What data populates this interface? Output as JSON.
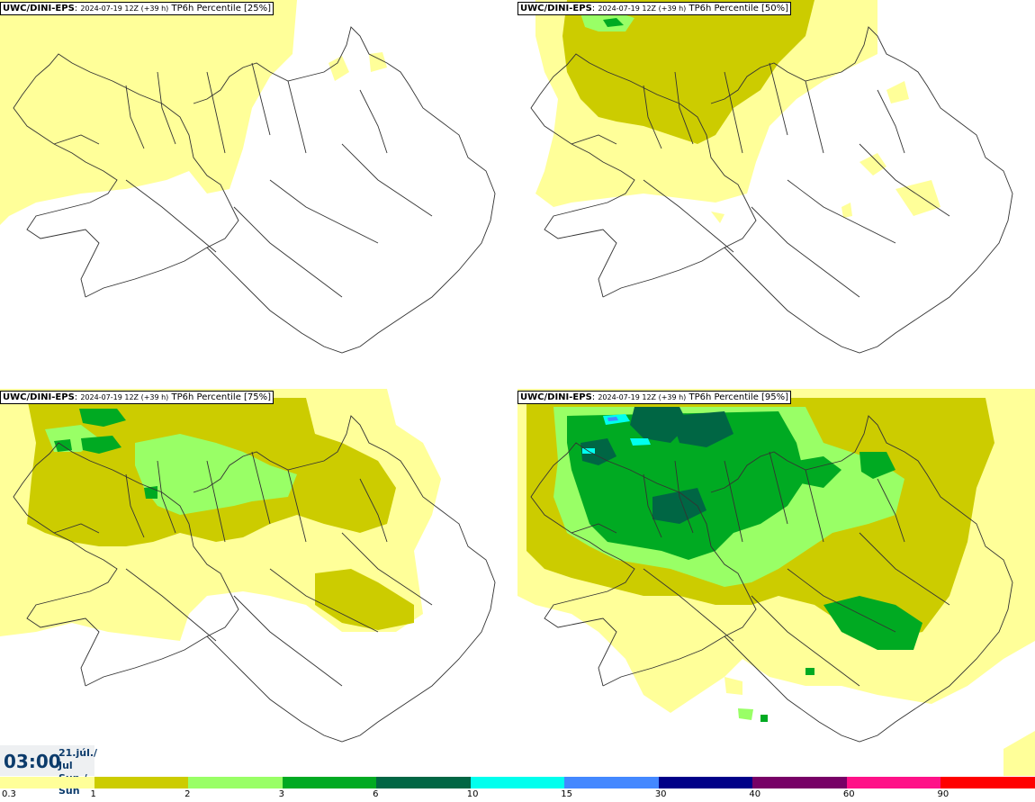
{
  "panels": [
    {
      "model": "UWC/DINI-EPS",
      "run": "2024-07-19 12Z (+39 h)",
      "label": "TP6h Percentile [25%]"
    },
    {
      "model": "UWC/DINI-EPS",
      "run": "2024-07-19 12Z (+39 h)",
      "label": "TP6h Percentile [50%]"
    },
    {
      "model": "UWC/DINI-EPS",
      "run": "2024-07-19 12Z (+39 h)",
      "label": "TP6h Percentile [75%]"
    },
    {
      "model": "UWC/DINI-EPS",
      "run": "2024-07-19 12Z (+39 h)",
      "label": "TP6h Percentile [95%]"
    }
  ],
  "valid_time": {
    "time": "03:00",
    "date": "21.júl./ Jul",
    "day": "Sun./ Sun"
  },
  "legend": {
    "ticks": [
      "0.3",
      "1",
      "2",
      "3",
      "6",
      "10",
      "15",
      "30",
      "40",
      "60",
      "90"
    ],
    "colors": [
      "#ffff99",
      "#cccc00",
      "#99ff66",
      "#00aa22",
      "#006644",
      "#00ffee",
      "#4488ff",
      "#000088",
      "#770066",
      "#ff1188",
      "#ff0000"
    ]
  }
}
